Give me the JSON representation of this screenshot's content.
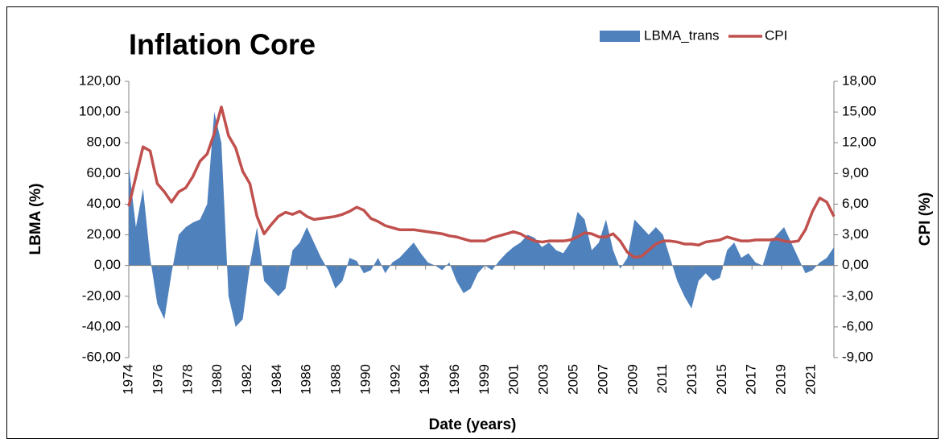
{
  "chart_data": {
    "type": "area",
    "title": "Inflation Core",
    "x_label": "Date (years)",
    "y_label": "LBMA (%)",
    "y2_label": "CPI (%)",
    "grid": false,
    "legend": "top-right",
    "x": [
      1974,
      1974.5,
      1975,
      1975.5,
      1976,
      1976.5,
      1977,
      1977.5,
      1978,
      1978.5,
      1979,
      1979.5,
      1980,
      1980.5,
      1981,
      1981.5,
      1982,
      1982.5,
      1983,
      1983.5,
      1984,
      1984.5,
      1985,
      1985.5,
      1986,
      1986.5,
      1987,
      1987.5,
      1988,
      1988.5,
      1989,
      1989.5,
      1990,
      1990.5,
      1991,
      1991.5,
      1992,
      1992.5,
      1993,
      1993.5,
      1994,
      1994.5,
      1995,
      1995.5,
      1996,
      1996.5,
      1997,
      1997.5,
      1998,
      1998.5,
      1999,
      1999.5,
      2000,
      2000.5,
      2001,
      2001.5,
      2002,
      2002.5,
      2003,
      2003.5,
      2004,
      2004.5,
      2005,
      2005.5,
      2006,
      2006.5,
      2007,
      2007.5,
      2008,
      2008.5,
      2009,
      2009.5,
      2010,
      2010.5,
      2011,
      2011.5,
      2012,
      2012.5,
      2013,
      2013.5,
      2014,
      2014.5,
      2015,
      2015.5,
      2016,
      2016.5,
      2017,
      2017.5,
      2018,
      2018.5,
      2019,
      2019.5,
      2020,
      2020.5,
      2021,
      2021.5,
      2022,
      2022.5,
      2023,
      2023.5
    ],
    "xlim": [
      1974,
      2023.5
    ],
    "xticks": [
      1974,
      {
        "value": 1976.08,
        "label": "1976"
      },
      {
        "value": 1978.17,
        "label": "1978"
      },
      {
        "value": 1980.25,
        "label": "1980"
      },
      {
        "value": 1982.33,
        "label": "1982"
      },
      {
        "value": 1984.42,
        "label": "1984"
      },
      {
        "value": 1986.5,
        "label": "1986"
      },
      {
        "value": 1988.58,
        "label": "1988"
      },
      {
        "value": 1990.67,
        "label": "1990"
      },
      {
        "value": 1992.75,
        "label": "1992"
      },
      {
        "value": 1994.83,
        "label": "1994"
      },
      {
        "value": 1996.92,
        "label": "1996"
      },
      1999,
      {
        "value": 2001.08,
        "label": "2001"
      },
      {
        "value": 2003.17,
        "label": "2003"
      },
      {
        "value": 2005.25,
        "label": "2005"
      },
      {
        "value": 2007.33,
        "label": "2007"
      },
      {
        "value": 2009.42,
        "label": "2009"
      },
      {
        "value": 2011.5,
        "label": "2011"
      },
      {
        "value": 2013.58,
        "label": "2013"
      },
      {
        "value": 2015.67,
        "label": "2015"
      },
      {
        "value": 2017.75,
        "label": "2017"
      },
      {
        "value": 2019.83,
        "label": "2019"
      },
      {
        "value": 2021.92,
        "label": "2021"
      }
    ],
    "ylim": [
      -60,
      120
    ],
    "yticks": [
      {
        "value": -60,
        "label": "-60,00"
      },
      {
        "value": -40,
        "label": "-40,00"
      },
      {
        "value": -20,
        "label": "-20,00"
      },
      {
        "value": 0,
        "label": "0,00"
      },
      {
        "value": 20,
        "label": "20,00"
      },
      {
        "value": 40,
        "label": "40,00"
      },
      {
        "value": 60,
        "label": "60,00"
      },
      {
        "value": 80,
        "label": "80,00"
      },
      {
        "value": 100,
        "label": "100,00"
      },
      {
        "value": 120,
        "label": "120,00"
      }
    ],
    "y2lim": [
      -9,
      18
    ],
    "y2ticks": [
      {
        "value": -9,
        "label": "-9,00"
      },
      {
        "value": -6,
        "label": "-6,00"
      },
      {
        "value": -3,
        "label": "-3,00"
      },
      {
        "value": 0,
        "label": "0,00"
      },
      {
        "value": 3,
        "label": "3,00"
      },
      {
        "value": 6,
        "label": "6,00"
      },
      {
        "value": 9,
        "label": "9,00"
      },
      {
        "value": 12,
        "label": "12,00"
      },
      {
        "value": 15,
        "label": "15,00"
      },
      {
        "value": 18,
        "label": "18,00"
      }
    ],
    "series": [
      {
        "name": "LBMA_trans",
        "color": "#4f81bd",
        "type": "area",
        "values": [
          65,
          25,
          50,
          5,
          -25,
          -35,
          -5,
          20,
          25,
          28,
          30,
          40,
          100,
          80,
          -20,
          -40,
          -35,
          0,
          25,
          -10,
          -15,
          -20,
          -15,
          10,
          15,
          25,
          15,
          5,
          -3,
          -15,
          -10,
          5,
          3,
          -5,
          -3,
          5,
          -5,
          2,
          5,
          10,
          15,
          8,
          2,
          0,
          -3,
          2,
          -10,
          -18,
          -15,
          -5,
          0,
          -3,
          3,
          8,
          12,
          15,
          20,
          18,
          12,
          15,
          10,
          8,
          15,
          35,
          30,
          10,
          15,
          30,
          10,
          -2,
          5,
          30,
          25,
          20,
          25,
          20,
          5,
          -10,
          -20,
          -28,
          -10,
          -5,
          -10,
          -8,
          10,
          15,
          5,
          8,
          2,
          0,
          15,
          20,
          25,
          15,
          5,
          -5,
          -3,
          2,
          5,
          12
        ]
      },
      {
        "name": "CPI",
        "color": "#c0504d",
        "type": "line",
        "axis": "y2",
        "values": [
          5.8,
          8.7,
          11.6,
          11.2,
          8.0,
          7.2,
          6.2,
          7.2,
          7.6,
          8.7,
          10.2,
          10.9,
          12.9,
          15.5,
          12.7,
          11.5,
          9.2,
          8.0,
          4.8,
          3.1,
          4.0,
          4.8,
          5.2,
          5.0,
          5.3,
          4.8,
          4.5,
          4.6,
          4.7,
          4.8,
          5.0,
          5.3,
          5.7,
          5.4,
          4.6,
          4.3,
          3.9,
          3.7,
          3.5,
          3.5,
          3.5,
          3.4,
          3.3,
          3.2,
          3.1,
          2.9,
          2.8,
          2.6,
          2.4,
          2.4,
          2.4,
          2.7,
          2.9,
          3.1,
          3.3,
          3.1,
          2.7,
          2.4,
          2.3,
          2.4,
          2.4,
          2.4,
          2.5,
          2.8,
          3.2,
          3.1,
          2.8,
          2.8,
          3.1,
          2.4,
          1.3,
          0.8,
          0.9,
          1.5,
          2.1,
          2.4,
          2.4,
          2.3,
          2.1,
          2.1,
          2.0,
          2.3,
          2.4,
          2.5,
          2.8,
          2.6,
          2.4,
          2.4,
          2.5,
          2.5,
          2.5,
          2.6,
          2.4,
          2.3,
          2.4,
          3.5,
          5.3,
          6.6,
          6.2,
          4.8
        ]
      }
    ]
  }
}
